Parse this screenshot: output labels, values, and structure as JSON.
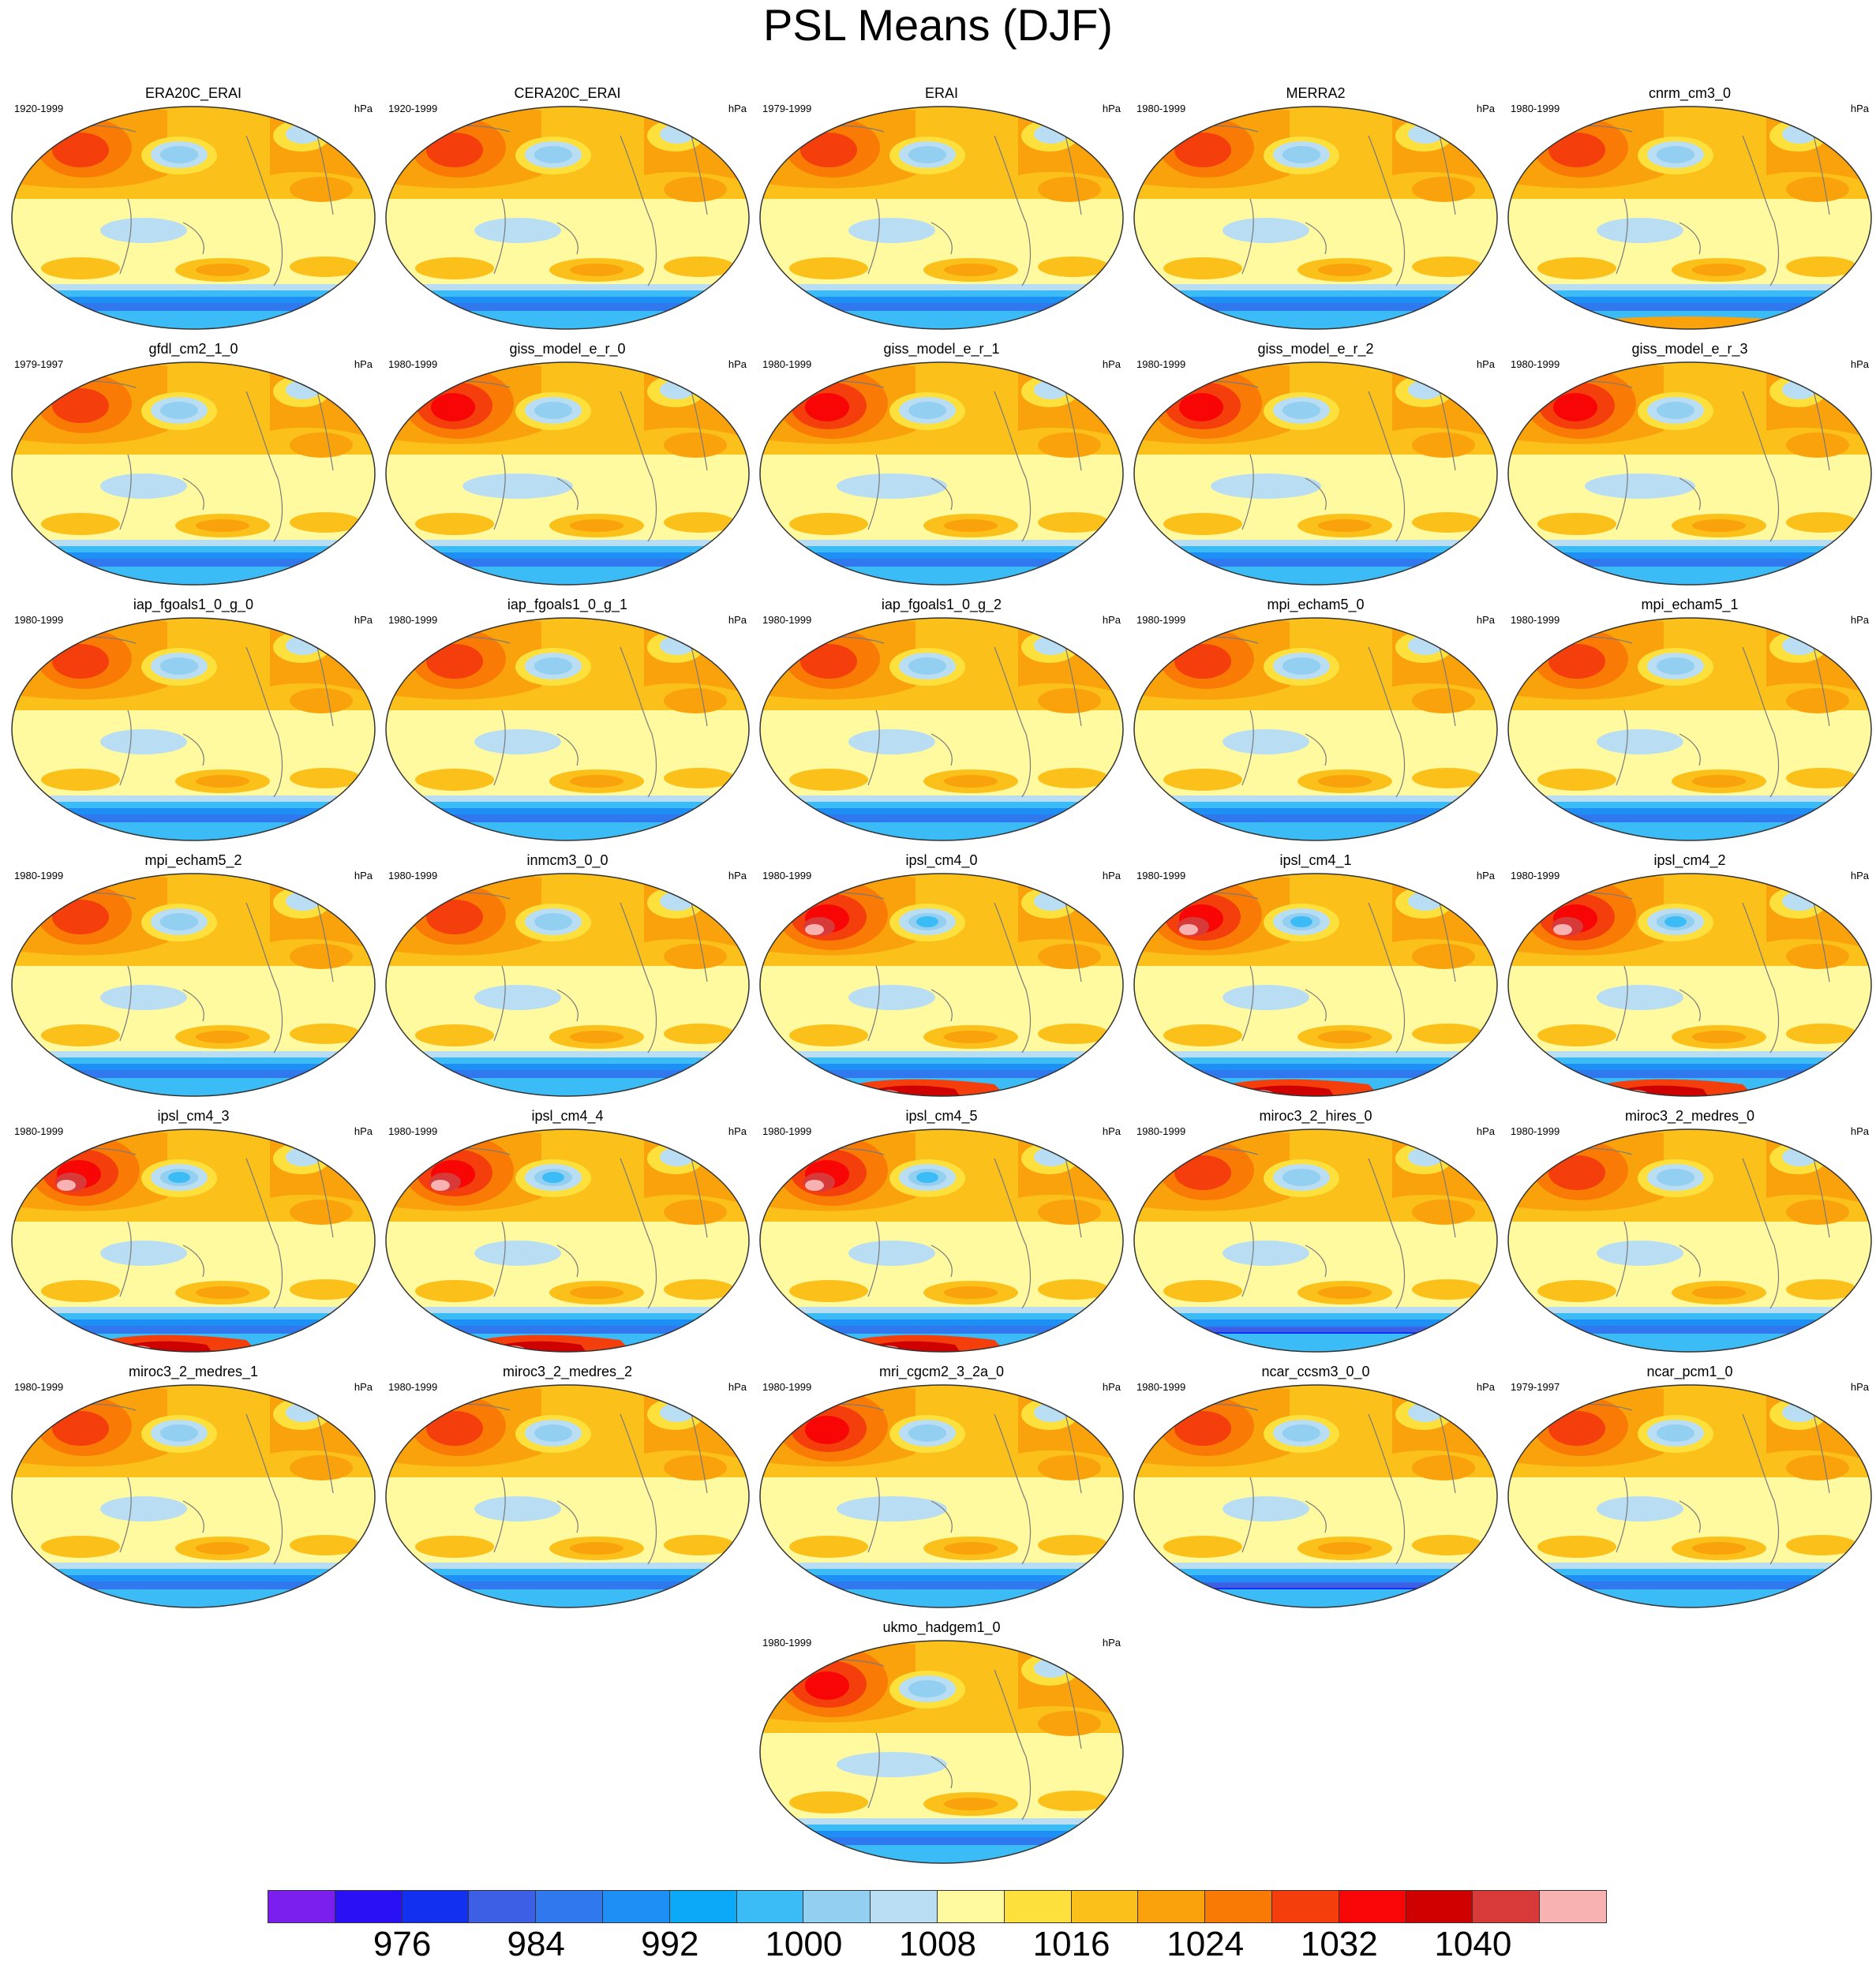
{
  "title": "PSL Means (DJF)",
  "unit": "hPa",
  "panels": [
    {
      "name": "ERA20C_ERAI",
      "period": "1920-1999",
      "variant": "obs"
    },
    {
      "name": "CERA20C_ERAI",
      "period": "1920-1999",
      "variant": "obs"
    },
    {
      "name": "ERAI",
      "period": "1979-1999",
      "variant": "obs"
    },
    {
      "name": "MERRA2",
      "period": "1980-1999",
      "variant": "obs"
    },
    {
      "name": "cnrm_cm3_0",
      "period": "1980-1999",
      "variant": "warm-antarctic"
    },
    {
      "name": "gfdl_cm2_1_0",
      "period": "1979-1997",
      "variant": "standard"
    },
    {
      "name": "giss_model_e_r_0",
      "period": "1980-1999",
      "variant": "strong"
    },
    {
      "name": "giss_model_e_r_1",
      "period": "1980-1999",
      "variant": "strong"
    },
    {
      "name": "giss_model_e_r_2",
      "period": "1980-1999",
      "variant": "strong"
    },
    {
      "name": "giss_model_e_r_3",
      "period": "1980-1999",
      "variant": "strong"
    },
    {
      "name": "iap_fgoals1_0_g_0",
      "period": "1980-1999",
      "variant": "standard"
    },
    {
      "name": "iap_fgoals1_0_g_1",
      "period": "1980-1999",
      "variant": "standard"
    },
    {
      "name": "iap_fgoals1_0_g_2",
      "period": "1980-1999",
      "variant": "standard"
    },
    {
      "name": "mpi_echam5_0",
      "period": "1980-1999",
      "variant": "standard"
    },
    {
      "name": "mpi_echam5_1",
      "period": "1980-1999",
      "variant": "standard"
    },
    {
      "name": "mpi_echam5_2",
      "period": "1980-1999",
      "variant": "standard"
    },
    {
      "name": "inmcm3_0_0",
      "period": "1980-1999",
      "variant": "standard"
    },
    {
      "name": "ipsl_cm4_0",
      "period": "1980-1999",
      "variant": "ipsl"
    },
    {
      "name": "ipsl_cm4_1",
      "period": "1980-1999",
      "variant": "ipsl"
    },
    {
      "name": "ipsl_cm4_2",
      "period": "1980-1999",
      "variant": "ipsl"
    },
    {
      "name": "ipsl_cm4_3",
      "period": "1980-1999",
      "variant": "ipsl"
    },
    {
      "name": "ipsl_cm4_4",
      "period": "1980-1999",
      "variant": "ipsl"
    },
    {
      "name": "ipsl_cm4_5",
      "period": "1980-1999",
      "variant": "ipsl"
    },
    {
      "name": "miroc3_2_hires_0",
      "period": "1980-1999",
      "variant": "deep-low"
    },
    {
      "name": "miroc3_2_medres_0",
      "period": "1980-1999",
      "variant": "standard"
    },
    {
      "name": "miroc3_2_medres_1",
      "period": "1980-1999",
      "variant": "standard"
    },
    {
      "name": "miroc3_2_medres_2",
      "period": "1980-1999",
      "variant": "standard"
    },
    {
      "name": "mri_cgcm2_3_2a_0",
      "period": "1980-1999",
      "variant": "strong"
    },
    {
      "name": "ncar_ccsm3_0_0",
      "period": "1980-1999",
      "variant": "deep-low"
    },
    {
      "name": "ncar_pcm1_0",
      "period": "1979-1997",
      "variant": "standard"
    },
    {
      "name": "ukmo_hadgem1_0",
      "period": "1980-1999",
      "variant": "strong"
    }
  ],
  "colorbar": {
    "colors": [
      "#7b1fef",
      "#2a10f5",
      "#1230f0",
      "#3c5fe6",
      "#2f78ee",
      "#1e8ff5",
      "#0aaaf8",
      "#3cbcf6",
      "#93cff0",
      "#b9def3",
      "#fffaa0",
      "#fde03c",
      "#fcc01a",
      "#f9a20b",
      "#f97b05",
      "#f43f0c",
      "#f80505",
      "#cf0000",
      "#d83a3a",
      "#f8b2b2"
    ],
    "labels": [
      "976",
      "984",
      "992",
      "1000",
      "1008",
      "1016",
      "1024",
      "1032",
      "1040"
    ]
  }
}
